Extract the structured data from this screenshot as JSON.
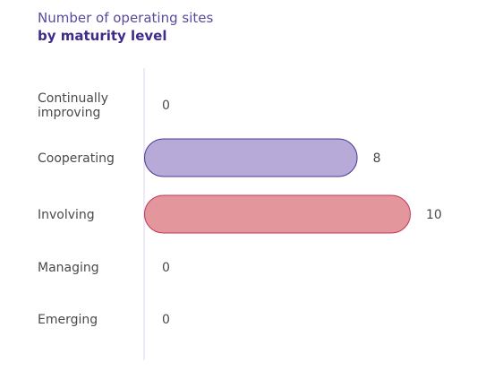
{
  "chart_data": {
    "type": "bar",
    "orientation": "horizontal",
    "title": "Number of operating sites",
    "subtitle": "by maturity level",
    "categories": [
      [
        "Continually",
        "improving"
      ],
      [
        "Cooperating"
      ],
      [
        "Involving"
      ],
      [
        "Managing"
      ],
      [
        "Emerging"
      ]
    ],
    "values": [
      0,
      8,
      10,
      0,
      0
    ],
    "xlim": [
      0,
      10
    ],
    "grid": false,
    "legend": "none",
    "colors": {
      "fills": [
        "#b8aad8",
        "#b8aad8",
        "#e3969c",
        "#b8aad8",
        "#b8aad8"
      ],
      "strokes": [
        "#4a3a8c",
        "#4a3a8c",
        "#c2365a",
        "#4a3a8c",
        "#4a3a8c"
      ],
      "title": "#5b4a9b",
      "subtitle": "#3f2b8a",
      "axis": "#d8d4e8"
    }
  }
}
